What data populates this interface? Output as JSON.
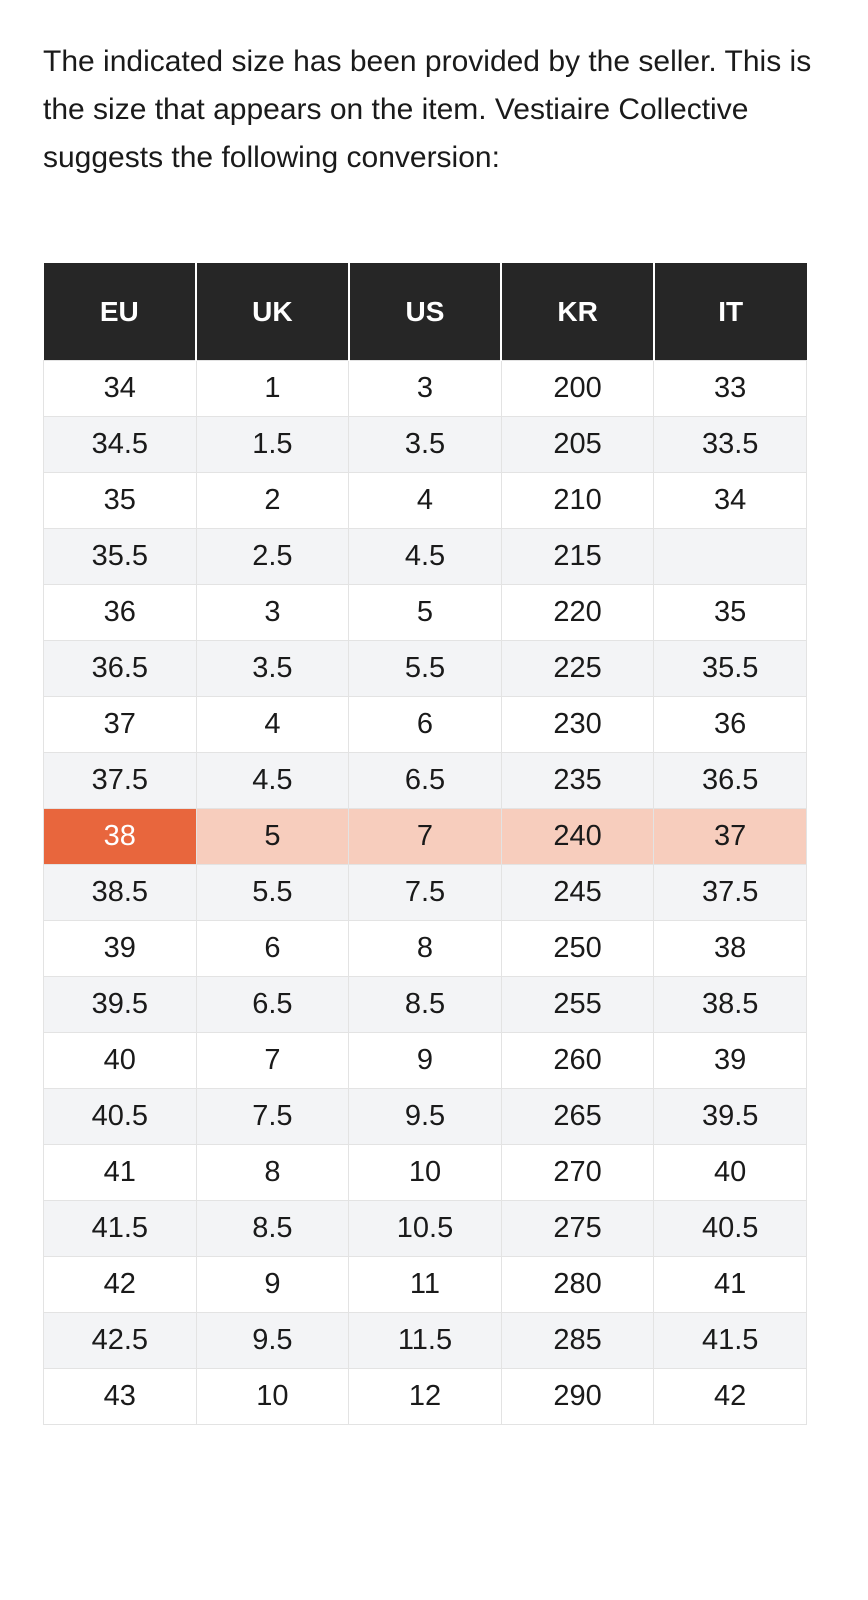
{
  "intro": "The indicated size has been provided by the seller. This is the size that appears on the item. Vestiaire Collective suggests the following conversion:",
  "table": {
    "header": [
      "EU",
      "UK",
      "US",
      "KR",
      "IT"
    ],
    "rows": [
      [
        "34",
        "1",
        "3",
        "200",
        "33"
      ],
      [
        "34.5",
        "1.5",
        "3.5",
        "205",
        "33.5"
      ],
      [
        "35",
        "2",
        "4",
        "210",
        "34"
      ],
      [
        "35.5",
        "2.5",
        "4.5",
        "215",
        null
      ],
      [
        "36",
        "3",
        "5",
        "220",
        "35"
      ],
      [
        "36.5",
        "3.5",
        "5.5",
        "225",
        "35.5"
      ],
      [
        "37",
        "4",
        "6",
        "230",
        "36"
      ],
      [
        "37.5",
        "4.5",
        "6.5",
        "235",
        "36.5"
      ],
      [
        "38",
        "5",
        "7",
        "240",
        "37"
      ],
      [
        "38.5",
        "5.5",
        "7.5",
        "245",
        "37.5"
      ],
      [
        "39",
        "6",
        "8",
        "250",
        "38"
      ],
      [
        "39.5",
        "6.5",
        "8.5",
        "255",
        "38.5"
      ],
      [
        "40",
        "7",
        "9",
        "260",
        "39"
      ],
      [
        "40.5",
        "7.5",
        "9.5",
        "265",
        "39.5"
      ],
      [
        "41",
        "8",
        "10",
        "270",
        "40"
      ],
      [
        "41.5",
        "8.5",
        "10.5",
        "275",
        "40.5"
      ],
      [
        "42",
        "9",
        "11",
        "280",
        "41"
      ],
      [
        "42.5",
        "9.5",
        "11.5",
        "285",
        "41.5"
      ],
      [
        "43",
        "10",
        "12",
        "290",
        "42"
      ]
    ],
    "highlight_row": 8,
    "highlight_color": "#e8663d",
    "highlight_row_color": "#f7cdbd"
  }
}
